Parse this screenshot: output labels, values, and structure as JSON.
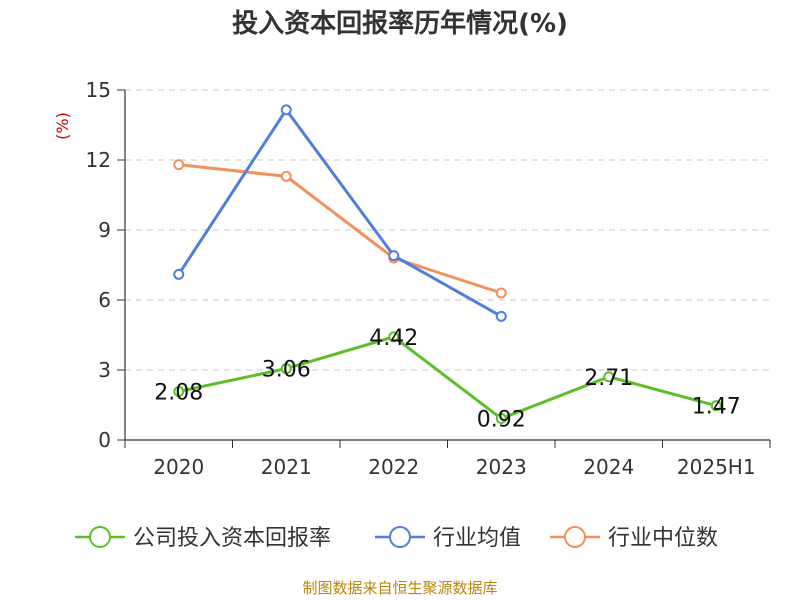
{
  "chart_data": {
    "type": "line",
    "title": "投入资本回报率历年情况(%)",
    "y_unit": "(%)",
    "categories": [
      "2020",
      "2021",
      "2022",
      "2023",
      "2024",
      "2025H1"
    ],
    "ylim": [
      0,
      15
    ],
    "yticks": [
      0,
      3,
      6,
      9,
      12,
      15
    ],
    "grid": true,
    "legend_position": "bottom",
    "series": [
      {
        "name": "公司投入资本回报率",
        "color": "#5cbf2a",
        "values": [
          2.08,
          3.06,
          4.42,
          0.92,
          2.71,
          1.47
        ],
        "labels": [
          "2.08",
          "3.06",
          "4.42",
          "0.92",
          "2.71",
          "1.47"
        ]
      },
      {
        "name": "行业均值",
        "color": "#4f7fd9",
        "values": [
          7.1,
          14.15,
          7.9,
          5.3,
          null,
          null
        ]
      },
      {
        "name": "行业中位数",
        "color": "#f4905a",
        "values": [
          11.8,
          11.3,
          7.8,
          6.3,
          null,
          null
        ]
      }
    ]
  },
  "source": "制图数据来自恒生聚源数据库"
}
